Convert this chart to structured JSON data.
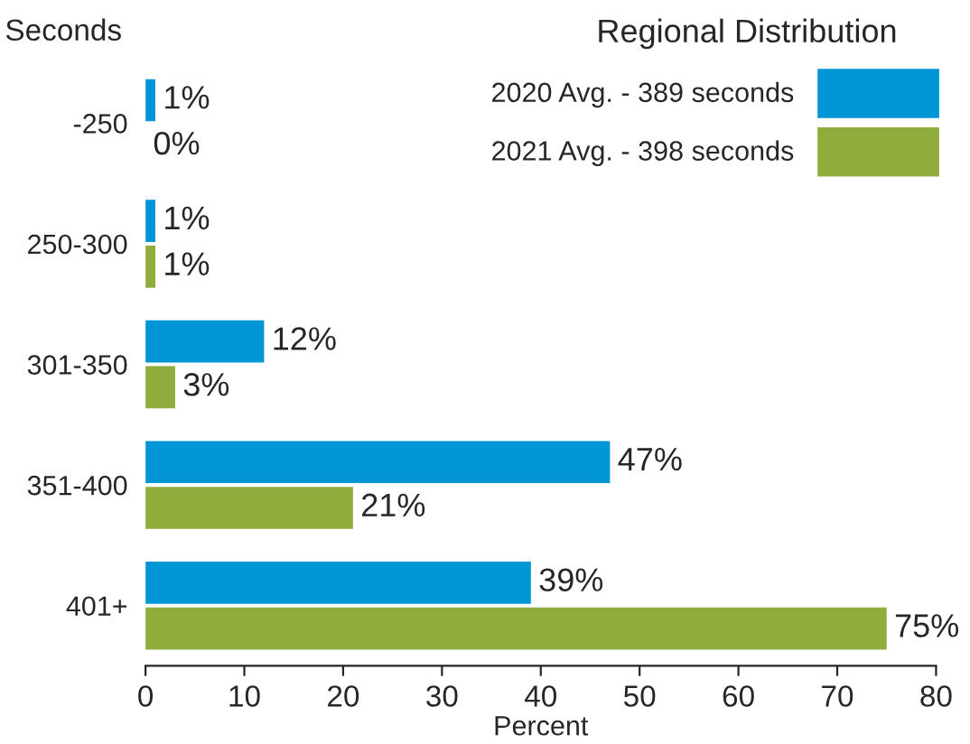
{
  "chart_data": {
    "type": "bar",
    "orientation": "horizontal",
    "title": "Regional Distribution",
    "xlabel": "Percent",
    "ylabel": "Seconds",
    "categories": [
      "-250",
      "250-300",
      "301-350",
      "351-400",
      "401+"
    ],
    "series": [
      {
        "name": "2020 Avg. - 389 seconds",
        "color": "#0096d6",
        "values": [
          1,
          1,
          12,
          47,
          39
        ],
        "value_labels": [
          "1%",
          "1%",
          "12%",
          "47%",
          "39%"
        ]
      },
      {
        "name": "2021 Avg. - 398 seconds",
        "color": "#8fac3c",
        "values": [
          0,
          1,
          3,
          21,
          75
        ],
        "value_labels": [
          "0%",
          "1%",
          "3%",
          "21%",
          "75%"
        ]
      }
    ],
    "xlim": [
      0,
      80
    ],
    "xticks": [
      0,
      10,
      20,
      30,
      40,
      50,
      60,
      70,
      80
    ],
    "grid": false,
    "legend": "top right"
  }
}
